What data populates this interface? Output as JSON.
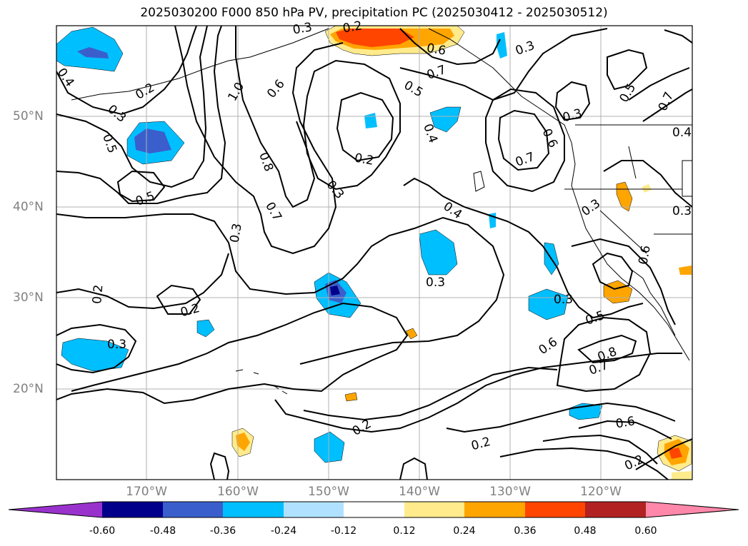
{
  "title": "2025030200 F000 850 hPa PV, precipitation PC (2025030412 - 2025030512)",
  "lat_labels": [
    "50°N",
    "40°N",
    "30°N",
    "20°N"
  ],
  "lon_labels": [
    "170°W",
    "160°W",
    "150°W",
    "140°W",
    "130°W",
    "120°W"
  ],
  "colorbar": {
    "tick_labels": [
      "-0.60",
      "-0.48",
      "-0.36",
      "-0.24",
      "-0.12",
      "0.12",
      "0.24",
      "0.36",
      "0.48",
      "0.60"
    ],
    "colors": [
      "#9932cc",
      "#00008b",
      "#3a5fcd",
      "#00bfff",
      "#b0e2ff",
      "#ffffff",
      "#ffeb8c",
      "#ffa500",
      "#ff4500",
      "#b22222",
      "#ff88aa"
    ]
  },
  "contour_labels": [
    "0.4",
    "0.2",
    "1.0",
    "0.6",
    "0.5",
    "0.3",
    "0.5",
    "0.8",
    "0.7",
    "0.3",
    "0.2",
    "0.3",
    "0.4",
    "0.2",
    "0.3",
    "0.5",
    "0.6",
    "0.7",
    "0.3",
    "0.6",
    "0.7",
    "0.3",
    "0.5",
    "0.7",
    "0.4",
    "0.3",
    "0.4",
    "0.3",
    "0.3",
    "0.5",
    "0.6",
    "0.8",
    "0.7",
    "0.6",
    "0.2",
    "0.2",
    "0.2",
    "0.2",
    "0.2",
    "0.3",
    "0.3",
    "0.6"
  ]
}
